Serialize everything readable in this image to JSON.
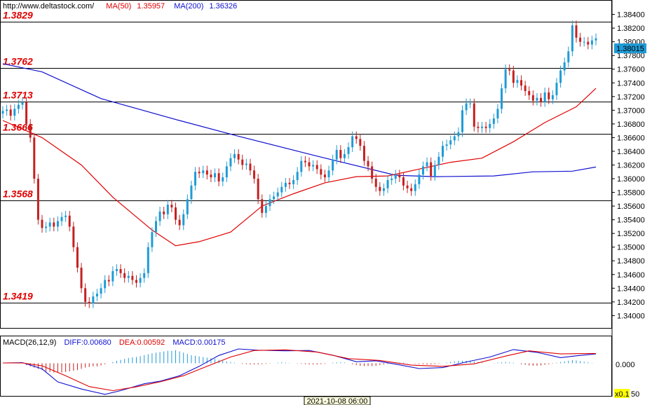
{
  "header": {
    "site": "http://www.deltastock.com/",
    "ma50_label": "MA(50)",
    "ma50_value": "1.35957",
    "ma200_label": "MA(200)",
    "ma200_value": "1.36326"
  },
  "macd_header": {
    "label": "MACD(26,12,9)",
    "diff_label": "DIFF:",
    "diff_value": "0.00680",
    "dea_label": "DEA:",
    "dea_value": "0.00592",
    "macd_label": "MACD:",
    "macd_value": "0.00175"
  },
  "colors": {
    "bull": "#1f9bd6",
    "bear": "#c42020",
    "ma50": "#e00000",
    "ma200": "#1010d0",
    "level_text": "#e00000",
    "diff": "#1010d0",
    "dea": "#e00000",
    "hist_pos": "#1f9bd6",
    "hist_neg": "#c42020",
    "current_price_bg": "#1f9bd6"
  },
  "chart_data": {
    "type": "candlestick",
    "price_axis": {
      "ylim": [
        1.3383,
        1.3859
      ],
      "ticks": [
        "1.38400",
        "1.38200",
        "1.38000",
        "1.37800",
        "1.37600",
        "1.37400",
        "1.37200",
        "1.37000",
        "1.36800",
        "1.36600",
        "1.36400",
        "1.36200",
        "1.36000",
        "1.35800",
        "1.35600",
        "1.35400",
        "1.35200",
        "1.35000",
        "1.34800",
        "1.34600",
        "1.34400",
        "1.34200",
        "1.34000"
      ],
      "current_price": "1.38015"
    },
    "levels": [
      {
        "label": "1.3829",
        "value": 1.3829
      },
      {
        "label": "1.3762",
        "value": 1.3762
      },
      {
        "label": "1.3713",
        "value": 1.3713
      },
      {
        "label": "1.3666",
        "value": 1.3666
      },
      {
        "label": "1.3568",
        "value": 1.3568
      },
      {
        "label": "1.3419",
        "value": 1.3419
      }
    ],
    "candles_close": [
      1.3699,
      1.3701,
      1.3692,
      1.3702,
      1.3708,
      1.3712,
      1.368,
      1.366,
      1.36,
      1.354,
      1.3528,
      1.353,
      1.3536,
      1.353,
      1.3538,
      1.3544,
      1.3546,
      1.353,
      1.35,
      1.347,
      1.344,
      1.342,
      1.3418,
      1.3428,
      1.3432,
      1.344,
      1.3452,
      1.345,
      1.3465,
      1.3468,
      1.3462,
      1.3455,
      1.3458,
      1.3452,
      1.3448,
      1.3455,
      1.3462,
      1.35,
      1.3522,
      1.3538,
      1.3552,
      1.3548,
      1.3562,
      1.3558,
      1.354,
      1.3532,
      1.3548,
      1.357,
      1.359,
      1.361,
      1.3608,
      1.3612,
      1.3606,
      1.3602,
      1.3608,
      1.3596,
      1.3602,
      1.3618,
      1.363,
      1.3636,
      1.3628,
      1.362,
      1.3622,
      1.3612,
      1.36,
      1.357,
      1.355,
      1.356,
      1.357,
      1.3574,
      1.358,
      1.3588,
      1.3594,
      1.3592,
      1.3598,
      1.361,
      1.3626,
      1.3624,
      1.3618,
      1.362,
      1.3614,
      1.3606,
      1.3602,
      1.3612,
      1.3628,
      1.3642,
      1.363,
      1.3636,
      1.3646,
      1.3662,
      1.3658,
      1.3648,
      1.3626,
      1.3618,
      1.36,
      1.3588,
      1.3582,
      1.3586,
      1.3598,
      1.36,
      1.3606,
      1.3602,
      1.359,
      1.3586,
      1.3582,
      1.3592,
      1.3606,
      1.3618,
      1.3624,
      1.3604,
      1.362,
      1.3632,
      1.3648,
      1.365,
      1.3656,
      1.3662,
      1.3668,
      1.37,
      1.371,
      1.371,
      1.3676,
      1.3674,
      1.3676,
      1.3674,
      1.368,
      1.3688,
      1.3702,
      1.3732,
      1.376,
      1.3758,
      1.374,
      1.3744,
      1.3736,
      1.3728,
      1.3722,
      1.3714,
      1.3718,
      1.3712,
      1.3726,
      1.3716,
      1.3722,
      1.374,
      1.3758,
      1.377,
      1.3786,
      1.3824,
      1.3806,
      1.38,
      1.38,
      1.3796,
      1.3802,
      1.3805
    ],
    "ma50": [
      {
        "i": 0,
        "v": 1.3685
      },
      {
        "i": 10,
        "v": 1.366
      },
      {
        "i": 20,
        "v": 1.362
      },
      {
        "i": 28,
        "v": 1.3573
      },
      {
        "i": 38,
        "v": 1.3525
      },
      {
        "i": 44,
        "v": 1.3502
      },
      {
        "i": 50,
        "v": 1.3508
      },
      {
        "i": 58,
        "v": 1.3522
      },
      {
        "i": 66,
        "v": 1.356
      },
      {
        "i": 74,
        "v": 1.3578
      },
      {
        "i": 82,
        "v": 1.3594
      },
      {
        "i": 90,
        "v": 1.3603
      },
      {
        "i": 98,
        "v": 1.3604
      },
      {
        "i": 106,
        "v": 1.3614
      },
      {
        "i": 114,
        "v": 1.3624
      },
      {
        "i": 122,
        "v": 1.363
      },
      {
        "i": 130,
        "v": 1.3654
      },
      {
        "i": 138,
        "v": 1.3682
      },
      {
        "i": 146,
        "v": 1.3705
      },
      {
        "i": 151,
        "v": 1.3732
      }
    ],
    "ma200": [
      {
        "i": 0,
        "v": 1.3768
      },
      {
        "i": 10,
        "v": 1.3756
      },
      {
        "i": 25,
        "v": 1.3717
      },
      {
        "i": 45,
        "v": 1.3685
      },
      {
        "i": 60,
        "v": 1.3662
      },
      {
        "i": 80,
        "v": 1.3633
      },
      {
        "i": 100,
        "v": 1.3605
      },
      {
        "i": 110,
        "v": 1.3603
      },
      {
        "i": 125,
        "v": 1.3604
      },
      {
        "i": 135,
        "v": 1.361
      },
      {
        "i": 145,
        "v": 1.3611
      },
      {
        "i": 151,
        "v": 1.3617
      }
    ],
    "macd": {
      "ylim": [
        -0.0105,
        0.0055
      ],
      "zero_tick": "0.000",
      "scale_label": "x0.1",
      "scale_tick_partial": "50",
      "diff": [
        {
          "i": 0,
          "v": 0.0001
        },
        {
          "i": 5,
          "v": 0.0002
        },
        {
          "i": 10,
          "v": -0.0018
        },
        {
          "i": 14,
          "v": -0.006
        },
        {
          "i": 20,
          "v": -0.0083
        },
        {
          "i": 26,
          "v": -0.01
        },
        {
          "i": 30,
          "v": -0.0088
        },
        {
          "i": 36,
          "v": -0.0066
        },
        {
          "i": 40,
          "v": -0.0058
        },
        {
          "i": 45,
          "v": -0.004
        },
        {
          "i": 50,
          "v": -0.001
        },
        {
          "i": 55,
          "v": 0.0025
        },
        {
          "i": 60,
          "v": 0.0046
        },
        {
          "i": 65,
          "v": 0.0042
        },
        {
          "i": 72,
          "v": 0.004
        },
        {
          "i": 78,
          "v": 0.0041
        },
        {
          "i": 84,
          "v": 0.0026
        },
        {
          "i": 90,
          "v": 0.0005
        },
        {
          "i": 95,
          "v": 0.0008
        },
        {
          "i": 100,
          "v": -0.0003
        },
        {
          "i": 106,
          "v": -0.0017
        },
        {
          "i": 112,
          "v": -0.0014
        },
        {
          "i": 118,
          "v": 0.0004
        },
        {
          "i": 124,
          "v": 0.002
        },
        {
          "i": 130,
          "v": 0.0044
        },
        {
          "i": 136,
          "v": 0.0035
        },
        {
          "i": 142,
          "v": 0.0018
        },
        {
          "i": 146,
          "v": 0.0024
        },
        {
          "i": 151,
          "v": 0.003
        }
      ],
      "dea": [
        {
          "i": 0,
          "v": 0.0001
        },
        {
          "i": 5,
          "v": 0.0001
        },
        {
          "i": 10,
          "v": -0.0008
        },
        {
          "i": 16,
          "v": -0.004
        },
        {
          "i": 22,
          "v": -0.0075
        },
        {
          "i": 28,
          "v": -0.0088
        },
        {
          "i": 34,
          "v": -0.0076
        },
        {
          "i": 40,
          "v": -0.006
        },
        {
          "i": 46,
          "v": -0.004
        },
        {
          "i": 52,
          "v": -0.001
        },
        {
          "i": 58,
          "v": 0.002
        },
        {
          "i": 64,
          "v": 0.0041
        },
        {
          "i": 72,
          "v": 0.0043
        },
        {
          "i": 80,
          "v": 0.0036
        },
        {
          "i": 88,
          "v": 0.0015
        },
        {
          "i": 96,
          "v": 0.0009
        },
        {
          "i": 104,
          "v": -0.0006
        },
        {
          "i": 112,
          "v": -0.001
        },
        {
          "i": 120,
          "v": -0.0002
        },
        {
          "i": 128,
          "v": 0.0023
        },
        {
          "i": 134,
          "v": 0.004
        },
        {
          "i": 142,
          "v": 0.003
        },
        {
          "i": 148,
          "v": 0.0031
        },
        {
          "i": 151,
          "v": 0.0031
        }
      ],
      "hist": [
        0.0,
        0.0001,
        0.0001,
        0.0001,
        0.0001,
        0.0001,
        -0.0006,
        -0.001,
        -0.0014,
        -0.0018,
        -0.0022,
        -0.0026,
        -0.0028,
        -0.003,
        -0.003,
        -0.003,
        -0.0028,
        -0.0026,
        -0.0024,
        -0.0022,
        -0.0018,
        -0.0014,
        -0.0012,
        -0.001,
        -0.001,
        -0.0007,
        -0.0003,
        0.0,
        0.0004,
        0.0008,
        0.0011,
        0.0014,
        0.0017,
        0.0019,
        0.002,
        0.0023,
        0.0026,
        0.0029,
        0.0032,
        0.0034,
        0.0036,
        0.0038,
        0.004,
        0.004,
        0.0042,
        0.0038,
        0.0034,
        0.003,
        0.0026,
        0.0024,
        0.0022,
        0.002,
        0.0018,
        0.0016,
        0.0014,
        0.0011,
        0.0008,
        0.0006,
        0.0004,
        0.0002,
        0.0,
        -0.0002,
        -0.0003,
        -0.0004,
        -0.0004,
        -0.0004,
        -0.0003,
        -0.0002,
        -0.0001,
        0.0,
        0.0002,
        0.0003,
        0.0002,
        0.0001,
        0.0,
        -0.0001,
        -0.0002,
        -0.0003,
        -0.0004,
        -0.0004,
        -0.0004,
        -0.0003,
        -0.0002,
        0.0,
        0.0002,
        0.0003,
        0.0003,
        0.0002,
        0.0,
        -0.0003,
        -0.0006,
        -0.0008,
        -0.0009,
        -0.0009,
        -0.0009,
        -0.0008,
        -0.0006,
        -0.0004,
        -0.0002,
        0.0,
        0.0001,
        0.0002,
        0.0002,
        0.0001,
        0.0,
        -0.0001,
        -0.0002,
        -0.0003,
        -0.0004,
        -0.0004,
        -0.0003,
        -0.0002,
        0.0,
        0.0002,
        0.0004,
        0.0006,
        0.0008,
        0.0008,
        0.0008,
        0.0008,
        0.0006,
        0.0004,
        0.0002,
        0.0,
        0.0,
        0.0001,
        0.0002,
        0.0003,
        0.0004,
        0.0003,
        0.0002,
        0.0,
        -0.0003,
        -0.0005,
        -0.0007,
        -0.0008,
        -0.0008,
        -0.0007,
        -0.0005,
        -0.0003,
        -0.0001,
        0.0002,
        0.0004,
        0.0006,
        0.0008,
        0.001,
        0.0009,
        0.0007,
        0.0005,
        0.0003,
        0.0001,
        0.0,
        0.0
      ]
    },
    "x_cursor_label": "2021-10-08 06:00"
  }
}
